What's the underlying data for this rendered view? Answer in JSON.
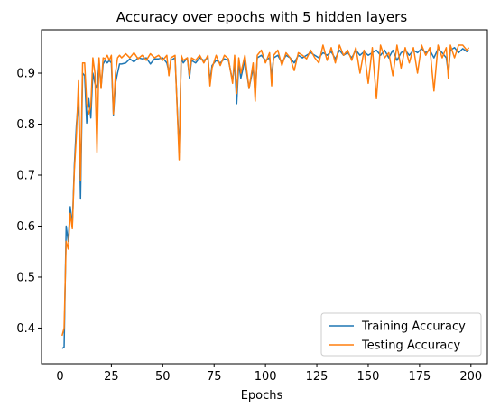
{
  "chart_data": {
    "type": "line",
    "title": "Accuracy over epochs with 5 hidden layers",
    "xlabel": "Epochs",
    "ylabel": "",
    "xlim": [
      -9,
      208
    ],
    "ylim": [
      0.33,
      0.985
    ],
    "xticks": [
      0,
      25,
      50,
      75,
      100,
      125,
      150,
      175,
      200
    ],
    "yticks": [
      0.4,
      0.5,
      0.6,
      0.7,
      0.8,
      0.9
    ],
    "grid": false,
    "legend_position": "lower-right",
    "series": [
      {
        "name": "Training Accuracy",
        "color": "#1f77b4",
        "points": [
          [
            1,
            0.36
          ],
          [
            2,
            0.363
          ],
          [
            3,
            0.6
          ],
          [
            4,
            0.57
          ],
          [
            5,
            0.638
          ],
          [
            6,
            0.6
          ],
          [
            7,
            0.72
          ],
          [
            8,
            0.8
          ],
          [
            9,
            0.85
          ],
          [
            10,
            0.653
          ],
          [
            11,
            0.9
          ],
          [
            12,
            0.895
          ],
          [
            13,
            0.802
          ],
          [
            14,
            0.85
          ],
          [
            15,
            0.812
          ],
          [
            16,
            0.9
          ],
          [
            17,
            0.88
          ],
          [
            18,
            0.87
          ],
          [
            19,
            0.92
          ],
          [
            20,
            0.873
          ],
          [
            21,
            0.918
          ],
          [
            22,
            0.925
          ],
          [
            23,
            0.92
          ],
          [
            24,
            0.925
          ],
          [
            25,
            0.92
          ],
          [
            26,
            0.818
          ],
          [
            27,
            0.88
          ],
          [
            28,
            0.9
          ],
          [
            29,
            0.918
          ],
          [
            30,
            0.918
          ],
          [
            32,
            0.92
          ],
          [
            34,
            0.928
          ],
          [
            36,
            0.922
          ],
          [
            38,
            0.93
          ],
          [
            40,
            0.928
          ],
          [
            42,
            0.93
          ],
          [
            44,
            0.918
          ],
          [
            46,
            0.928
          ],
          [
            48,
            0.928
          ],
          [
            50,
            0.93
          ],
          [
            52,
            0.92
          ],
          [
            53,
            0.902
          ],
          [
            54,
            0.925
          ],
          [
            56,
            0.93
          ],
          [
            58,
            0.745
          ],
          [
            59,
            0.928
          ],
          [
            60,
            0.92
          ],
          [
            62,
            0.93
          ],
          [
            63,
            0.89
          ],
          [
            64,
            0.925
          ],
          [
            66,
            0.92
          ],
          [
            68,
            0.93
          ],
          [
            70,
            0.925
          ],
          [
            72,
            0.93
          ],
          [
            73,
            0.885
          ],
          [
            74,
            0.915
          ],
          [
            76,
            0.925
          ],
          [
            78,
            0.92
          ],
          [
            80,
            0.928
          ],
          [
            82,
            0.925
          ],
          [
            84,
            0.885
          ],
          [
            85,
            0.92
          ],
          [
            86,
            0.84
          ],
          [
            87,
            0.92
          ],
          [
            88,
            0.89
          ],
          [
            90,
            0.925
          ],
          [
            92,
            0.87
          ],
          [
            94,
            0.91
          ],
          [
            95,
            0.86
          ],
          [
            96,
            0.93
          ],
          [
            98,
            0.935
          ],
          [
            100,
            0.925
          ],
          [
            102,
            0.93
          ],
          [
            103,
            0.895
          ],
          [
            104,
            0.93
          ],
          [
            106,
            0.935
          ],
          [
            108,
            0.92
          ],
          [
            110,
            0.935
          ],
          [
            112,
            0.93
          ],
          [
            114,
            0.92
          ],
          [
            116,
            0.935
          ],
          [
            118,
            0.93
          ],
          [
            120,
            0.935
          ],
          [
            122,
            0.94
          ],
          [
            124,
            0.935
          ],
          [
            126,
            0.93
          ],
          [
            128,
            0.94
          ],
          [
            130,
            0.935
          ],
          [
            132,
            0.942
          ],
          [
            134,
            0.928
          ],
          [
            136,
            0.945
          ],
          [
            138,
            0.935
          ],
          [
            140,
            0.94
          ],
          [
            142,
            0.93
          ],
          [
            144,
            0.945
          ],
          [
            146,
            0.935
          ],
          [
            148,
            0.942
          ],
          [
            150,
            0.935
          ],
          [
            152,
            0.94
          ],
          [
            154,
            0.945
          ],
          [
            156,
            0.935
          ],
          [
            158,
            0.945
          ],
          [
            160,
            0.93
          ],
          [
            162,
            0.945
          ],
          [
            164,
            0.925
          ],
          [
            166,
            0.94
          ],
          [
            168,
            0.945
          ],
          [
            170,
            0.935
          ],
          [
            172,
            0.945
          ],
          [
            174,
            0.94
          ],
          [
            176,
            0.948
          ],
          [
            178,
            0.94
          ],
          [
            180,
            0.945
          ],
          [
            182,
            0.93
          ],
          [
            184,
            0.948
          ],
          [
            186,
            0.94
          ],
          [
            188,
            0.93
          ],
          [
            189,
            0.9
          ],
          [
            190,
            0.945
          ],
          [
            192,
            0.95
          ],
          [
            194,
            0.94
          ],
          [
            196,
            0.948
          ],
          [
            198,
            0.942
          ],
          [
            199,
            0.945
          ]
        ]
      },
      {
        "name": "Testing Accuracy",
        "color": "#ff7f0e",
        "points": [
          [
            1,
            0.385
          ],
          [
            2,
            0.4
          ],
          [
            3,
            0.57
          ],
          [
            4,
            0.555
          ],
          [
            5,
            0.625
          ],
          [
            6,
            0.595
          ],
          [
            7,
            0.71
          ],
          [
            8,
            0.78
          ],
          [
            9,
            0.885
          ],
          [
            10,
            0.69
          ],
          [
            11,
            0.92
          ],
          [
            12,
            0.92
          ],
          [
            13,
            0.84
          ],
          [
            14,
            0.82
          ],
          [
            15,
            0.835
          ],
          [
            16,
            0.93
          ],
          [
            17,
            0.9
          ],
          [
            18,
            0.745
          ],
          [
            19,
            0.93
          ],
          [
            20,
            0.87
          ],
          [
            21,
            0.93
          ],
          [
            22,
            0.928
          ],
          [
            23,
            0.935
          ],
          [
            24,
            0.925
          ],
          [
            25,
            0.935
          ],
          [
            26,
            0.82
          ],
          [
            27,
            0.9
          ],
          [
            28,
            0.93
          ],
          [
            29,
            0.935
          ],
          [
            30,
            0.93
          ],
          [
            32,
            0.938
          ],
          [
            34,
            0.93
          ],
          [
            36,
            0.94
          ],
          [
            38,
            0.928
          ],
          [
            40,
            0.935
          ],
          [
            42,
            0.925
          ],
          [
            44,
            0.938
          ],
          [
            46,
            0.93
          ],
          [
            48,
            0.935
          ],
          [
            50,
            0.925
          ],
          [
            52,
            0.935
          ],
          [
            53,
            0.895
          ],
          [
            54,
            0.93
          ],
          [
            56,
            0.935
          ],
          [
            58,
            0.73
          ],
          [
            59,
            0.935
          ],
          [
            60,
            0.925
          ],
          [
            62,
            0.93
          ],
          [
            63,
            0.895
          ],
          [
            64,
            0.93
          ],
          [
            66,
            0.925
          ],
          [
            68,
            0.935
          ],
          [
            70,
            0.92
          ],
          [
            72,
            0.935
          ],
          [
            73,
            0.875
          ],
          [
            74,
            0.91
          ],
          [
            76,
            0.935
          ],
          [
            78,
            0.915
          ],
          [
            80,
            0.935
          ],
          [
            82,
            0.928
          ],
          [
            84,
            0.88
          ],
          [
            85,
            0.935
          ],
          [
            86,
            0.86
          ],
          [
            87,
            0.93
          ],
          [
            88,
            0.9
          ],
          [
            90,
            0.935
          ],
          [
            92,
            0.87
          ],
          [
            94,
            0.92
          ],
          [
            95,
            0.845
          ],
          [
            96,
            0.935
          ],
          [
            98,
            0.945
          ],
          [
            100,
            0.92
          ],
          [
            102,
            0.94
          ],
          [
            103,
            0.875
          ],
          [
            104,
            0.935
          ],
          [
            106,
            0.945
          ],
          [
            108,
            0.915
          ],
          [
            110,
            0.94
          ],
          [
            112,
            0.93
          ],
          [
            114,
            0.905
          ],
          [
            116,
            0.94
          ],
          [
            118,
            0.935
          ],
          [
            120,
            0.928
          ],
          [
            122,
            0.945
          ],
          [
            124,
            0.93
          ],
          [
            126,
            0.92
          ],
          [
            128,
            0.955
          ],
          [
            130,
            0.925
          ],
          [
            132,
            0.95
          ],
          [
            134,
            0.92
          ],
          [
            136,
            0.955
          ],
          [
            138,
            0.935
          ],
          [
            140,
            0.945
          ],
          [
            142,
            0.925
          ],
          [
            144,
            0.95
          ],
          [
            146,
            0.9
          ],
          [
            148,
            0.945
          ],
          [
            150,
            0.88
          ],
          [
            152,
            0.95
          ],
          [
            154,
            0.85
          ],
          [
            156,
            0.955
          ],
          [
            158,
            0.93
          ],
          [
            160,
            0.94
          ],
          [
            162,
            0.895
          ],
          [
            164,
            0.955
          ],
          [
            166,
            0.91
          ],
          [
            168,
            0.95
          ],
          [
            170,
            0.92
          ],
          [
            172,
            0.95
          ],
          [
            174,
            0.9
          ],
          [
            176,
            0.955
          ],
          [
            178,
            0.935
          ],
          [
            180,
            0.95
          ],
          [
            182,
            0.865
          ],
          [
            184,
            0.955
          ],
          [
            186,
            0.93
          ],
          [
            188,
            0.95
          ],
          [
            189,
            0.89
          ],
          [
            190,
            0.955
          ],
          [
            192,
            0.93
          ],
          [
            194,
            0.955
          ],
          [
            196,
            0.955
          ],
          [
            198,
            0.945
          ],
          [
            199,
            0.95
          ]
        ]
      }
    ]
  }
}
